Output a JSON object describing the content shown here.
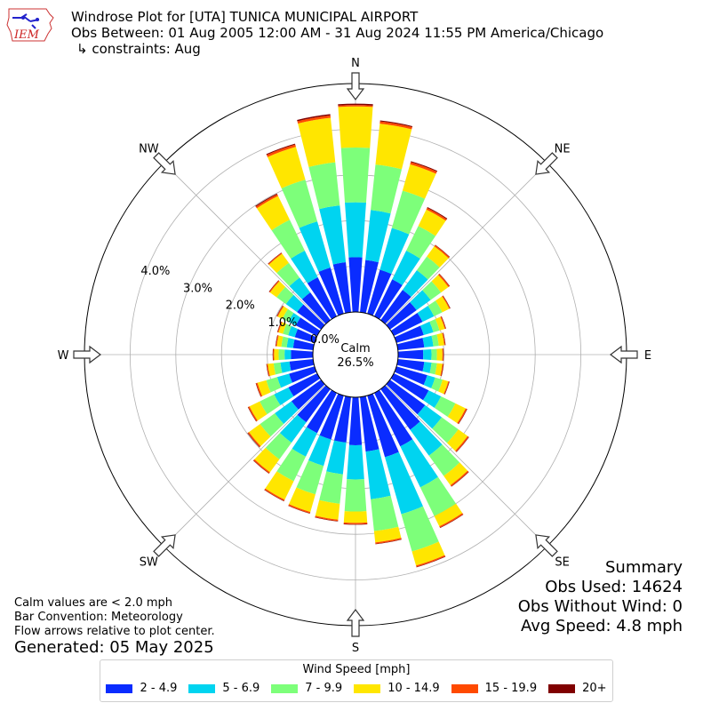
{
  "header": {
    "title": "Windrose Plot for [UTA] TUNICA MUNICIPAL AIRPORT",
    "obs_between": "Obs Between: 01 Aug 2005 12:00 AM - 31 Aug 2024 11:55 PM America/Chicago",
    "constraints": "↳ constraints: Aug"
  },
  "logo": {
    "text": "IEM",
    "icon": "iem-logo-icon"
  },
  "summary": {
    "title": "Summary",
    "obs_used": "Obs Used: 14624",
    "obs_without_wind": "Obs Without Wind: 0",
    "avg_speed": "Avg Speed: 4.8 mph"
  },
  "notes": {
    "calm": "Calm values are < 2.0 mph",
    "bar_convention": "Bar Convention: Meteorology",
    "flow_arrows": "Flow arrows relative to plot center."
  },
  "generated": "Generated: 05 May 2025",
  "legend": {
    "title": "Wind Speed [mph]",
    "bins": [
      {
        "label": "2 - 4.9",
        "color": "#0a2cff"
      },
      {
        "label": "5 - 6.9",
        "color": "#00d4f0"
      },
      {
        "label": "7 - 9.9",
        "color": "#7dff7a"
      },
      {
        "label": "10 - 14.9",
        "color": "#ffe600"
      },
      {
        "label": "15 - 19.9",
        "color": "#ff4a00"
      },
      {
        "label": "20+",
        "color": "#800000"
      }
    ]
  },
  "chart_data": {
    "type": "windrose",
    "center_label": "Calm",
    "calm_percent": "26.5%",
    "radial_ticks": [
      "0.0%",
      "1.0%",
      "2.0%",
      "3.0%",
      "4.0%"
    ],
    "radial_tick_values": [
      0,
      1,
      2,
      3,
      4
    ],
    "r_max": 5.0,
    "directions": [
      "N",
      "NE",
      "E",
      "SE",
      "S",
      "SW",
      "W",
      "NW"
    ],
    "sector_angles_deg": [
      0,
      10,
      20,
      30,
      40,
      50,
      60,
      70,
      80,
      90,
      100,
      110,
      120,
      130,
      140,
      150,
      160,
      170,
      180,
      190,
      200,
      210,
      220,
      230,
      240,
      250,
      260,
      270,
      280,
      290,
      300,
      310,
      320,
      330,
      340,
      350
    ],
    "cumulative_percent": [
      [
        1.2,
        2.4,
        3.6,
        4.5,
        4.53,
        4.56
      ],
      [
        1.15,
        2.25,
        3.25,
        4.15,
        4.2,
        4.22
      ],
      [
        1.0,
        1.95,
        2.8,
        3.4,
        3.45,
        3.47
      ],
      [
        0.9,
        1.6,
        2.2,
        2.6,
        2.64,
        2.66
      ],
      [
        0.82,
        1.35,
        1.72,
        2.0,
        2.03,
        2.04
      ],
      [
        0.72,
        1.1,
        1.38,
        1.58,
        1.61,
        1.62
      ],
      [
        0.7,
        0.98,
        1.18,
        1.35,
        1.37,
        1.38
      ],
      [
        0.62,
        0.84,
        0.98,
        1.1,
        1.12,
        1.13
      ],
      [
        0.58,
        0.78,
        0.9,
        1.02,
        1.04,
        1.05
      ],
      [
        0.55,
        0.73,
        0.85,
        0.97,
        0.99,
        1.0
      ],
      [
        0.58,
        0.74,
        0.86,
        0.98,
        1.0,
        1.01
      ],
      [
        0.7,
        0.88,
        1.05,
        1.18,
        1.2,
        1.21
      ],
      [
        0.85,
        1.15,
        1.5,
        1.75,
        1.78,
        1.79
      ],
      [
        0.95,
        1.4,
        1.85,
        2.1,
        2.13,
        2.14
      ],
      [
        1.1,
        1.8,
        2.35,
        2.6,
        2.63,
        2.64
      ],
      [
        1.3,
        2.3,
        3.0,
        3.25,
        3.28,
        3.29
      ],
      [
        1.4,
        2.7,
        3.55,
        3.87,
        3.9,
        3.91
      ],
      [
        1.2,
        2.25,
        2.95,
        3.2,
        3.23,
        3.24
      ],
      [
        1.05,
        1.8,
        2.5,
        2.75,
        2.78,
        2.79
      ],
      [
        1.0,
        1.7,
        2.35,
        2.7,
        2.73,
        2.74
      ],
      [
        1.0,
        1.6,
        2.25,
        2.65,
        2.68,
        2.69
      ],
      [
        0.98,
        1.55,
        2.15,
        2.6,
        2.63,
        2.64
      ],
      [
        0.9,
        1.45,
        1.9,
        2.25,
        2.28,
        2.29
      ],
      [
        0.8,
        1.25,
        1.65,
        1.95,
        1.98,
        1.99
      ],
      [
        0.7,
        1.05,
        1.4,
        1.65,
        1.68,
        1.69
      ],
      [
        0.58,
        0.85,
        1.1,
        1.3,
        1.33,
        1.34
      ],
      [
        0.52,
        0.72,
        0.87,
        1.0,
        1.02,
        1.03
      ],
      [
        0.48,
        0.62,
        0.75,
        0.85,
        0.87,
        0.88
      ],
      [
        0.44,
        0.58,
        0.7,
        0.8,
        0.82,
        0.83
      ],
      [
        0.45,
        0.6,
        0.72,
        0.82,
        0.84,
        0.85
      ],
      [
        0.52,
        0.7,
        0.85,
        0.96,
        0.98,
        0.99
      ],
      [
        0.65,
        0.95,
        1.2,
        1.38,
        1.4,
        1.41
      ],
      [
        0.75,
        1.15,
        1.55,
        1.8,
        1.82,
        1.83
      ],
      [
        0.95,
        1.6,
        2.35,
        2.93,
        2.97,
        2.99
      ],
      [
        1.05,
        2.1,
        3.05,
        3.8,
        3.85,
        3.87
      ],
      [
        1.1,
        2.35,
        3.3,
        4.28,
        4.33,
        4.36
      ]
    ]
  }
}
